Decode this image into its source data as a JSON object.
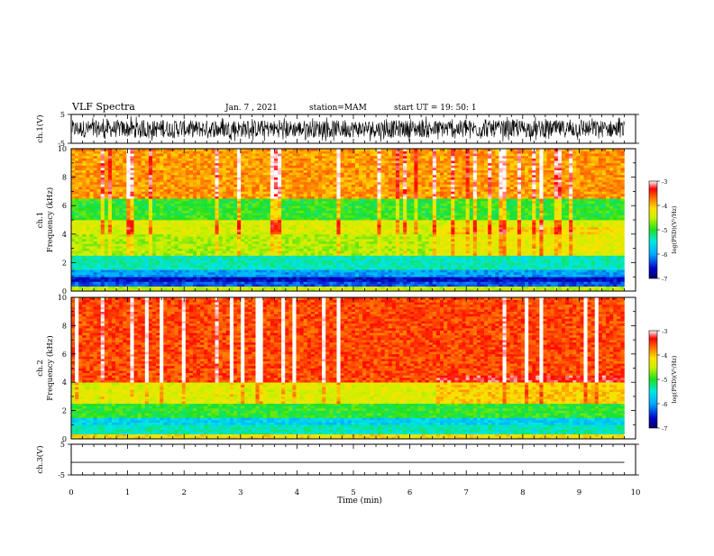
{
  "header": {
    "title": "VLF Spectra",
    "date": "Jan. 7 , 2021",
    "station": "station=MAM",
    "start": "start UT =   19: 50: 1"
  },
  "chart_data": [
    {
      "type": "line",
      "name": "ch1-waveform",
      "ylabel": "ch.1(V)",
      "ylim": [
        -5,
        5
      ],
      "yticks": [
        {
          "v": 5,
          "label": "5"
        },
        {
          "v": -5,
          "label": "-5"
        }
      ],
      "xlim": [
        0,
        10
      ],
      "description_values": {
        "typical_range": [
          -4.5,
          4.5
        ],
        "dense_noise": true
      }
    },
    {
      "type": "heatmap",
      "name": "ch1-spectrogram",
      "ylabel": "ch.1\nFrequency (kHz)",
      "ylim": [
        0,
        10
      ],
      "yticks": [
        0,
        2,
        4,
        6,
        8,
        10
      ],
      "xlim": [
        0,
        10
      ],
      "data_extent_min": 9.8,
      "colorbar": {
        "label": "log(PSD)(V²/Hz)",
        "range": [
          -7,
          -3
        ],
        "ticks": [
          -3,
          -4,
          -5,
          -6,
          -7
        ]
      },
      "bands": [
        {
          "f": [
            0,
            0.3
          ],
          "log_psd": -4.5
        },
        {
          "f": [
            0.3,
            0.6
          ],
          "log_psd": -6.3
        },
        {
          "f": [
            0.6,
            1.0
          ],
          "log_psd": -6.6
        },
        {
          "f": [
            1.0,
            1.5
          ],
          "log_psd": -6.0
        },
        {
          "f": [
            1.5,
            2.5
          ],
          "log_psd": -5.4
        },
        {
          "f": [
            2.5,
            4.0
          ],
          "log_psd": -4.6
        },
        {
          "f": [
            4.0,
            5.0
          ],
          "log_psd": -4.4
        },
        {
          "f": [
            5.0,
            6.5
          ],
          "log_psd": -5.0
        },
        {
          "f": [
            6.5,
            10.0
          ],
          "log_psd": -3.9
        }
      ]
    },
    {
      "type": "heatmap",
      "name": "ch2-spectrogram",
      "ylabel": "ch.2\nFrequency (kHz)",
      "ylim": [
        0,
        10
      ],
      "yticks": [
        0,
        2,
        4,
        6,
        8,
        10
      ],
      "xlim": [
        0,
        10
      ],
      "data_extent_min": 9.8,
      "colorbar": {
        "label": "log(PSD)(V²/Hz)",
        "range": [
          -7,
          -3
        ],
        "ticks": [
          -3,
          -4,
          -5,
          -6,
          -7
        ]
      },
      "bands": [
        {
          "f": [
            0,
            0.3
          ],
          "log_psd": -4.2
        },
        {
          "f": [
            0.3,
            1.0
          ],
          "log_psd": -5.4
        },
        {
          "f": [
            1.0,
            1.5
          ],
          "log_psd": -5.7
        },
        {
          "f": [
            1.5,
            2.5
          ],
          "log_psd": -5.0
        },
        {
          "f": [
            2.5,
            4.0
          ],
          "log_psd": -4.4
        },
        {
          "f": [
            4.0,
            10.0
          ],
          "log_psd": -3.6
        }
      ]
    },
    {
      "type": "line",
      "name": "ch3-waveform",
      "ylabel": "ch.3(V)",
      "ylim": [
        -5,
        5
      ],
      "yticks": [
        {
          "v": 5,
          "label": "5"
        },
        {
          "v": -5,
          "label": "-5"
        }
      ],
      "xlim": [
        0,
        10
      ],
      "values": [
        {
          "x": 0,
          "y": -0.9
        },
        {
          "x": 9.8,
          "y": -0.9
        }
      ]
    }
  ],
  "time_axis": {
    "xlabel": "Time (min)",
    "ticks": [
      0,
      1,
      2,
      3,
      4,
      5,
      6,
      7,
      8,
      9,
      10
    ]
  }
}
